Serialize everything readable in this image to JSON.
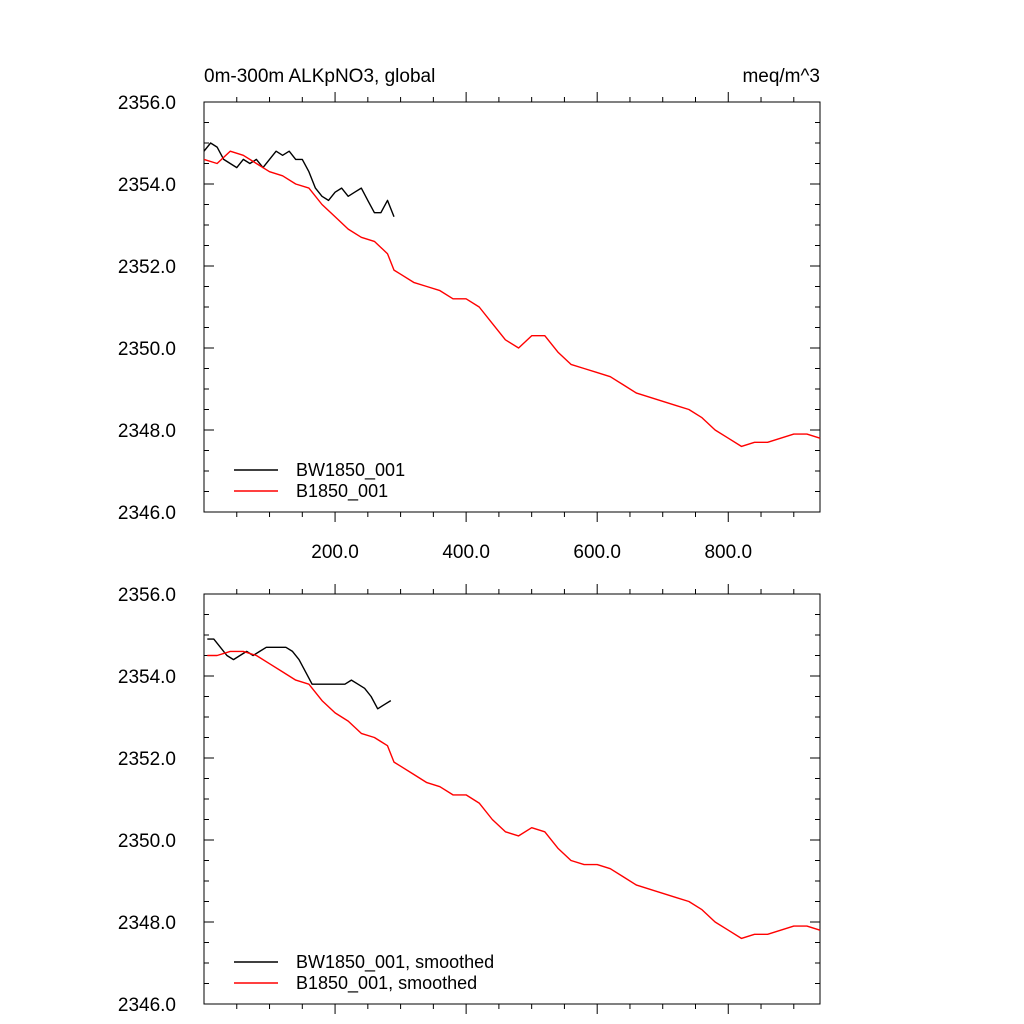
{
  "header": {
    "title_left": "0m-300m ALKpNO3, global",
    "title_right": "meq/m^3"
  },
  "colors": {
    "bw1850": "#000000",
    "b1850": "#ff0000",
    "axis": "#000000"
  },
  "chart_data": [
    {
      "type": "line",
      "title": "0m-300m ALKpNO3, global",
      "units": "meq/m^3",
      "xlim": [
        0,
        940
      ],
      "ylim": [
        2346.0,
        2356.0
      ],
      "x_ticks": [
        200,
        400,
        600,
        800
      ],
      "x_tick_labels": [
        "200.0",
        "400.0",
        "600.0",
        "800.0"
      ],
      "y_ticks": [
        2346,
        2348,
        2350,
        2352,
        2354,
        2356
      ],
      "y_tick_labels": [
        "2346.0",
        "2348.0",
        "2350.0",
        "2352.0",
        "2354.0",
        "2356.0"
      ],
      "legend_position": "bottom-left",
      "grid": false,
      "series": [
        {
          "name": "BW1850_001",
          "color": "#000000",
          "x": [
            0,
            10,
            20,
            30,
            40,
            50,
            60,
            70,
            80,
            90,
            100,
            110,
            120,
            130,
            140,
            150,
            160,
            170,
            180,
            190,
            200,
            210,
            220,
            230,
            240,
            250,
            260,
            270,
            280,
            290
          ],
          "y": [
            2354.8,
            2355.0,
            2354.9,
            2354.6,
            2354.5,
            2354.4,
            2354.6,
            2354.5,
            2354.6,
            2354.4,
            2354.6,
            2354.8,
            2354.7,
            2354.8,
            2354.6,
            2354.6,
            2354.3,
            2353.9,
            2353.7,
            2353.6,
            2353.8,
            2353.9,
            2353.7,
            2353.8,
            2353.9,
            2353.6,
            2353.3,
            2353.3,
            2353.6,
            2353.2
          ]
        },
        {
          "name": "B1850_001",
          "color": "#ff0000",
          "x": [
            0,
            20,
            40,
            60,
            80,
            100,
            120,
            140,
            160,
            180,
            200,
            220,
            240,
            260,
            280,
            290,
            300,
            320,
            340,
            360,
            380,
            400,
            420,
            440,
            460,
            480,
            500,
            520,
            540,
            560,
            580,
            600,
            620,
            640,
            660,
            680,
            700,
            720,
            740,
            760,
            780,
            800,
            820,
            840,
            860,
            880,
            900,
            920,
            940
          ],
          "y": [
            2354.6,
            2354.5,
            2354.8,
            2354.7,
            2354.5,
            2354.3,
            2354.2,
            2354.0,
            2353.9,
            2353.5,
            2353.2,
            2352.9,
            2352.7,
            2352.6,
            2352.3,
            2351.9,
            2351.8,
            2351.6,
            2351.5,
            2351.4,
            2351.2,
            2351.2,
            2351.0,
            2350.6,
            2350.2,
            2350.0,
            2350.3,
            2350.3,
            2349.9,
            2349.6,
            2349.5,
            2349.4,
            2349.3,
            2349.1,
            2348.9,
            2348.8,
            2348.7,
            2348.6,
            2348.5,
            2348.3,
            2348.0,
            2347.8,
            2347.6,
            2347.7,
            2347.7,
            2347.8,
            2347.9,
            2347.9,
            2347.8
          ]
        }
      ]
    },
    {
      "type": "line",
      "xlim": [
        0,
        940
      ],
      "ylim": [
        2346.0,
        2356.0
      ],
      "x_ticks": [
        200,
        400,
        600,
        800
      ],
      "x_tick_labels": [],
      "y_ticks": [
        2346,
        2348,
        2350,
        2352,
        2354,
        2356
      ],
      "y_tick_labels": [
        "2346.0",
        "2348.0",
        "2350.0",
        "2352.0",
        "2354.0",
        "2356.0"
      ],
      "legend_position": "bottom-left",
      "grid": false,
      "series": [
        {
          "name": "BW1850_001, smoothed",
          "color": "#000000",
          "x": [
            5,
            15,
            25,
            35,
            45,
            55,
            65,
            75,
            85,
            95,
            105,
            115,
            125,
            135,
            145,
            155,
            165,
            175,
            185,
            195,
            205,
            215,
            225,
            235,
            245,
            255,
            265,
            275,
            285
          ],
          "y": [
            2354.9,
            2354.9,
            2354.7,
            2354.5,
            2354.4,
            2354.5,
            2354.6,
            2354.5,
            2354.6,
            2354.7,
            2354.7,
            2354.7,
            2354.7,
            2354.6,
            2354.4,
            2354.1,
            2353.8,
            2353.8,
            2353.8,
            2353.8,
            2353.8,
            2353.8,
            2353.9,
            2353.8,
            2353.7,
            2353.5,
            2353.2,
            2353.3,
            2353.4
          ]
        },
        {
          "name": "B1850_001, smoothed",
          "color": "#ff0000",
          "x": [
            5,
            20,
            40,
            60,
            80,
            100,
            120,
            140,
            160,
            180,
            200,
            220,
            240,
            260,
            280,
            290,
            300,
            320,
            340,
            360,
            380,
            400,
            420,
            440,
            460,
            480,
            500,
            520,
            540,
            560,
            580,
            600,
            620,
            640,
            660,
            680,
            700,
            720,
            740,
            760,
            780,
            800,
            820,
            840,
            860,
            880,
            900,
            920,
            940
          ],
          "y": [
            2354.5,
            2354.5,
            2354.6,
            2354.6,
            2354.5,
            2354.3,
            2354.1,
            2353.9,
            2353.8,
            2353.4,
            2353.1,
            2352.9,
            2352.6,
            2352.5,
            2352.3,
            2351.9,
            2351.8,
            2351.6,
            2351.4,
            2351.3,
            2351.1,
            2351.1,
            2350.9,
            2350.5,
            2350.2,
            2350.1,
            2350.3,
            2350.2,
            2349.8,
            2349.5,
            2349.4,
            2349.4,
            2349.3,
            2349.1,
            2348.9,
            2348.8,
            2348.7,
            2348.6,
            2348.5,
            2348.3,
            2348.0,
            2347.8,
            2347.6,
            2347.7,
            2347.7,
            2347.8,
            2347.9,
            2347.9,
            2347.8
          ]
        }
      ]
    }
  ]
}
